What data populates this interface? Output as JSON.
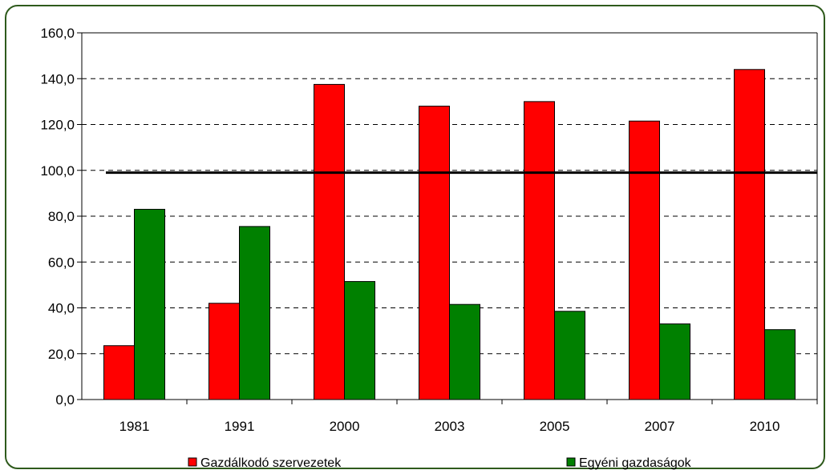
{
  "chart_data": {
    "type": "bar",
    "categories": [
      "1981",
      "1991",
      "2000",
      "2003",
      "2005",
      "2007",
      "2010"
    ],
    "series": [
      {
        "name": "Gazdálkodó szervezetek",
        "color": "#ff0000",
        "values": [
          23.5,
          42.0,
          137.5,
          128.0,
          130.0,
          121.5,
          144.0
        ]
      },
      {
        "name": "Egyéni gazdaságok",
        "color": "#008000",
        "values": [
          83.0,
          75.5,
          51.5,
          41.5,
          38.5,
          33.0,
          30.5
        ]
      }
    ],
    "y_ticks": [
      "0,0",
      "20,0",
      "40,0",
      "60,0",
      "80,0",
      "100,0",
      "120,0",
      "140,0",
      "160,0"
    ],
    "ylim": [
      0,
      160
    ],
    "reference_line": 99,
    "grid": "dashed horizontal",
    "legend_position": "bottom"
  }
}
